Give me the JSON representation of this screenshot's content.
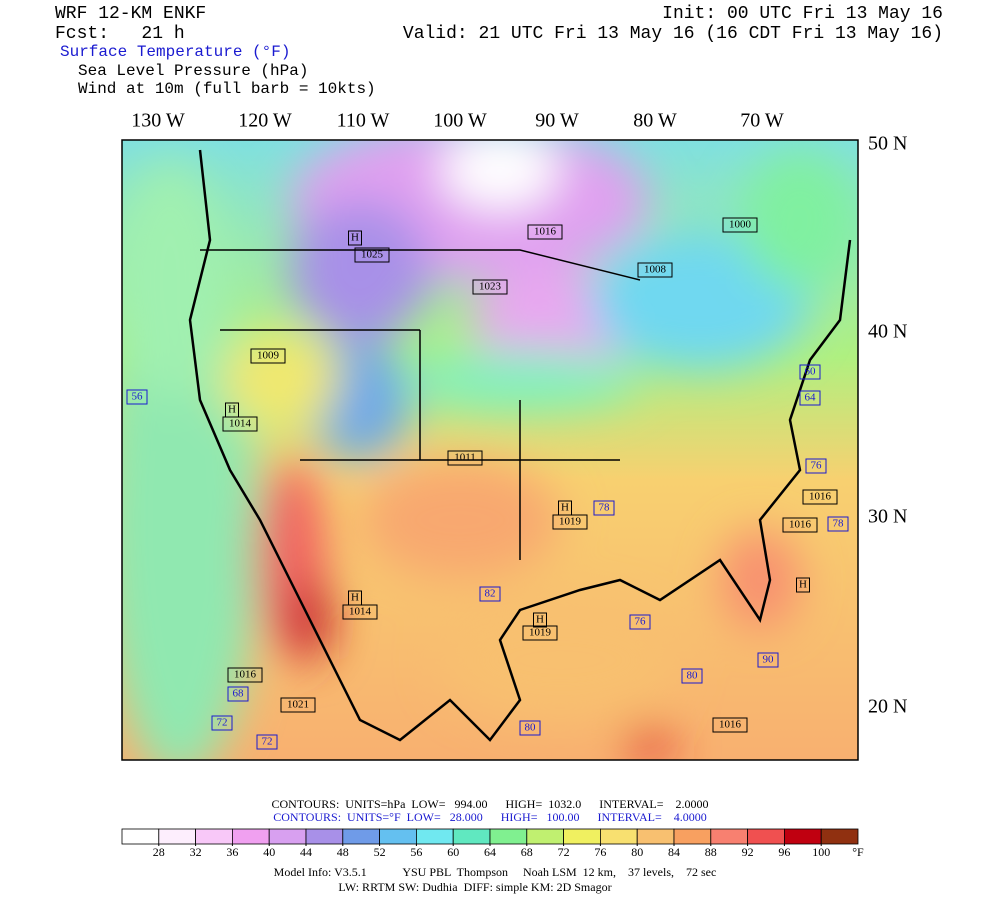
{
  "header": {
    "model": "WRF 12-KM ENKF",
    "forecast": "Fcst:   21 h",
    "init": "Init: 00 UTC Fri 13 May 16",
    "valid": "Valid: 21 UTC Fri 13 May 16 (16 CDT Fri 13 May 16)",
    "fields": [
      "Surface Temperature (°F)",
      "Sea Level Pressure (hPa)",
      "Wind at 10m (full barb = 10kts)"
    ]
  },
  "map": {
    "longitudes": [
      "130 W",
      "120 W",
      "110 W",
      "100 W",
      "90 W",
      "80 W",
      "70 W"
    ],
    "latitudes": [
      "50 N",
      "40 N",
      "30 N",
      "20 N"
    ],
    "labels": [
      "H",
      "1025",
      "1016",
      "1023",
      "1000",
      "1008",
      "1009",
      "H",
      "1014",
      "1011",
      "H",
      "1019",
      "H",
      "1019",
      "H",
      "1014",
      "1016",
      "1021",
      "1016",
      "1016",
      "1016",
      "56",
      "64",
      "60",
      "76",
      "68",
      "72",
      "72",
      "80",
      "80",
      "90",
      "76",
      "82",
      "78",
      "78",
      "H"
    ]
  },
  "footer": {
    "contours_pressure": "CONTOURS:  UNITS=hPa  LOW=   994.00      HIGH=  1032.0      INTERVAL=    2.0000",
    "contours_temperature": "CONTOURS:  UNITS=°F  LOW=   28.000      HIGH=   100.00      INTERVAL=    4.0000",
    "model_info": "Model Info: V3.5.1            YSU PBL  Thompson     Noah LSM  12 km,    37 levels,    72 sec",
    "physics": "LW: RRTM SW: Dudhia  DIFF: simple KM: 2D Smagor"
  },
  "colorbar": {
    "colors": [
      "#ffffff",
      "#fdeefd",
      "#f8c8f8",
      "#f0a0f0",
      "#d8a0f0",
      "#a890e8",
      "#6f9be8",
      "#64c0f0",
      "#70e8f0",
      "#60e8c0",
      "#80f090",
      "#c0f070",
      "#f0f060",
      "#f8e070",
      "#f8c070",
      "#f8a060",
      "#f88070",
      "#f05050",
      "#c00010",
      "#903010"
    ],
    "labels": [
      28,
      32,
      36,
      40,
      44,
      48,
      52,
      56,
      60,
      64,
      68,
      72,
      76,
      80,
      84,
      88,
      92,
      96,
      100
    ],
    "unit": "°F"
  }
}
